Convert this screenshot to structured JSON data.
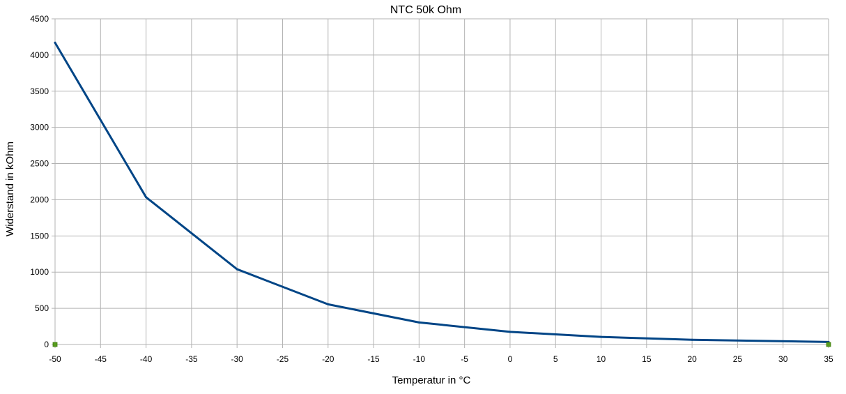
{
  "chart_data": {
    "type": "line",
    "title": "NTC 50k Ohm",
    "xlabel": "Temperatur in °C",
    "ylabel": "Widerstand in kOhm",
    "xlim": [
      -50,
      35
    ],
    "ylim": [
      0,
      4500
    ],
    "x_ticks": [
      "-50",
      "-45",
      "-40",
      "-35",
      "-30",
      "-25",
      "-20",
      "-15",
      "-10",
      "-5",
      "0",
      "5",
      "10",
      "15",
      "20",
      "25",
      "30",
      "35"
    ],
    "y_ticks": [
      "0",
      "500",
      "1000",
      "1500",
      "2000",
      "2500",
      "3000",
      "3500",
      "4000",
      "4500"
    ],
    "grid": true,
    "legend": "none",
    "series": [
      {
        "color": "#004586",
        "x": [
          -50,
          -40,
          -30,
          -20,
          -10,
          0,
          10,
          20,
          35
        ],
        "y": [
          4170,
          2035,
          1040,
          555,
          305,
          175,
          105,
          65,
          35
        ]
      },
      {
        "color": "#579d1c",
        "marker": "square",
        "x": [
          -50,
          35
        ],
        "y": [
          0,
          0
        ]
      }
    ],
    "colors": {
      "grid": "#b3b3b3",
      "axis": "#b3b3b3"
    }
  }
}
